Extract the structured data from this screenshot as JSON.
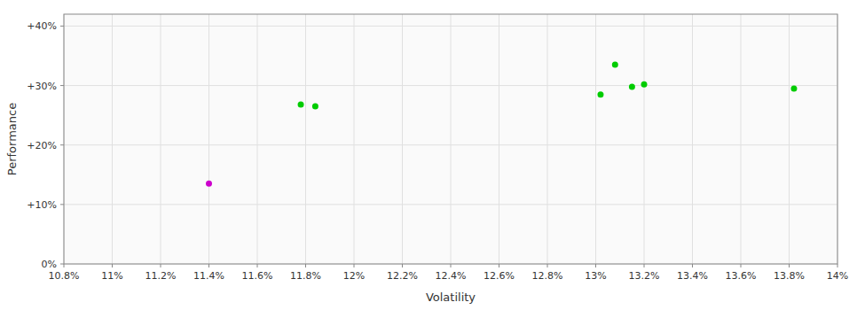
{
  "chart_data": {
    "type": "scatter",
    "xlabel": "Volatility",
    "ylabel": "Performance",
    "x": [
      0.114,
      0.1178,
      0.1184,
      0.1302,
      0.1308,
      0.1315,
      0.132,
      0.1382
    ],
    "values": [
      0.135,
      0.268,
      0.265,
      0.285,
      0.335,
      0.298,
      0.302,
      0.295
    ],
    "colors": [
      "#cc00cc",
      "#00cc00",
      "#00cc00",
      "#00cc00",
      "#00cc00",
      "#00cc00",
      "#00cc00",
      "#00cc00"
    ],
    "xlim": [
      0.108,
      0.14
    ],
    "ylim": [
      0.0,
      0.42
    ],
    "xticks": [
      {
        "value": 0.108,
        "label": "10.8%"
      },
      {
        "value": 0.11,
        "label": "11%"
      },
      {
        "value": 0.112,
        "label": "11.2%"
      },
      {
        "value": 0.114,
        "label": "11.4%"
      },
      {
        "value": 0.116,
        "label": "11.6%"
      },
      {
        "value": 0.118,
        "label": "11.8%"
      },
      {
        "value": 0.12,
        "label": "12%"
      },
      {
        "value": 0.122,
        "label": "12.2%"
      },
      {
        "value": 0.124,
        "label": "12.4%"
      },
      {
        "value": 0.126,
        "label": "12.6%"
      },
      {
        "value": 0.128,
        "label": "12.8%"
      },
      {
        "value": 0.13,
        "label": "13%"
      },
      {
        "value": 0.132,
        "label": "13.2%"
      },
      {
        "value": 0.134,
        "label": "13.4%"
      },
      {
        "value": 0.136,
        "label": "13.6%"
      },
      {
        "value": 0.138,
        "label": "13.8%"
      },
      {
        "value": 0.14,
        "label": "14%"
      }
    ],
    "yticks": [
      {
        "value": 0.0,
        "label": "0%"
      },
      {
        "value": 0.1,
        "label": "+10%"
      },
      {
        "value": 0.2,
        "label": "+20%"
      },
      {
        "value": 0.3,
        "label": "+30%"
      },
      {
        "value": 0.4,
        "label": "+40%"
      }
    ],
    "grid": true
  }
}
